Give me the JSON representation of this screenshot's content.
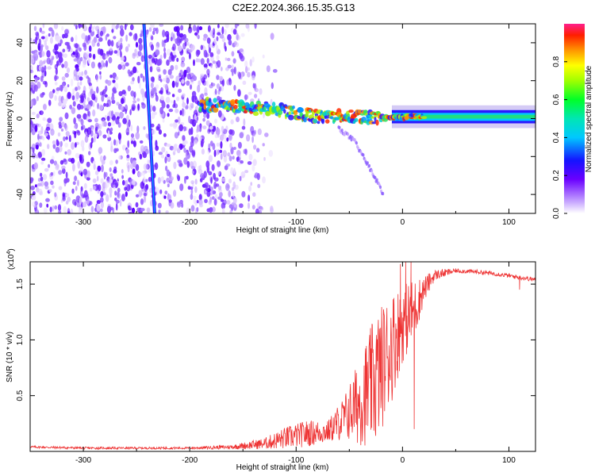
{
  "title": "C2E2.2024.366.15.35.G13",
  "chart_data": [
    {
      "type": "heatmap",
      "name": "spectrogram",
      "xlabel": "Height of straight line (km)",
      "ylabel": "Frequency (Hz)",
      "xlim": [
        -350,
        125
      ],
      "ylim": [
        -50,
        50
      ],
      "xticks": [
        -300,
        -200,
        -100,
        0,
        100
      ],
      "xtick_labels": [
        "-300",
        "-200",
        "-100",
        "0",
        "100"
      ],
      "yticks": [
        -40,
        -20,
        0,
        20,
        40
      ],
      "ytick_labels": [
        "-40",
        "-20",
        "0",
        "20",
        "40"
      ],
      "noise_region_end_km": -140,
      "satellite_streak": {
        "x_top": -243,
        "x_bottom": -233
      },
      "signal_track": [
        {
          "x": -185,
          "y": 7
        },
        {
          "x": -150,
          "y": 6
        },
        {
          "x": -120,
          "y": 5
        },
        {
          "x": -100,
          "y": 3
        },
        {
          "x": -80,
          "y": 1
        },
        {
          "x": -60,
          "y": 1
        },
        {
          "x": -40,
          "y": 1
        },
        {
          "x": -20,
          "y": 0.5
        },
        {
          "x": 0,
          "y": 1
        },
        {
          "x": 40,
          "y": 1
        },
        {
          "x": 80,
          "y": 1
        },
        {
          "x": 125,
          "y": 1
        }
      ],
      "tail_track": [
        {
          "x": -60,
          "y": -5
        },
        {
          "x": -45,
          "y": -12
        },
        {
          "x": -35,
          "y": -22
        },
        {
          "x": -25,
          "y": -32
        },
        {
          "x": -18,
          "y": -40
        }
      ],
      "colorbar": {
        "label": "Normalized spectral amplitude",
        "range": [
          0,
          1
        ],
        "ticks": [
          0.0,
          0.2,
          0.4,
          0.6,
          0.8
        ],
        "tick_labels": [
          "0.0",
          "0.2",
          "0.4",
          "0.6",
          "0.8"
        ]
      }
    },
    {
      "type": "line",
      "name": "snr",
      "xlabel": "Height of straight line (km)",
      "ylabel": "SNR (10 * v/v)",
      "multiplier_label": "(x10",
      "multiplier_exp": "4",
      "multiplier_close": ")",
      "xlim": [
        -350,
        125
      ],
      "ylim": [
        0,
        1.7
      ],
      "xticks": [
        -300,
        -200,
        -100,
        0,
        100
      ],
      "xtick_labels": [
        "-300",
        "-200",
        "-100",
        "0",
        "100"
      ],
      "yticks": [
        0.5,
        1.0,
        1.5
      ],
      "ytick_labels": [
        "0.5",
        "1.0",
        "1.5"
      ],
      "color": "#ee3333",
      "envelope": [
        {
          "x": -350,
          "mean": 0.04,
          "amp": 0.01
        },
        {
          "x": -300,
          "mean": 0.03,
          "amp": 0.01
        },
        {
          "x": -250,
          "mean": 0.03,
          "amp": 0.01
        },
        {
          "x": -200,
          "mean": 0.03,
          "amp": 0.01
        },
        {
          "x": -160,
          "mean": 0.04,
          "amp": 0.02
        },
        {
          "x": -130,
          "mean": 0.07,
          "amp": 0.05
        },
        {
          "x": -110,
          "mean": 0.12,
          "amp": 0.1
        },
        {
          "x": -90,
          "mean": 0.16,
          "amp": 0.12
        },
        {
          "x": -70,
          "mean": 0.18,
          "amp": 0.1
        },
        {
          "x": -55,
          "mean": 0.3,
          "amp": 0.2
        },
        {
          "x": -40,
          "mean": 0.45,
          "amp": 0.4
        },
        {
          "x": -25,
          "mean": 0.65,
          "amp": 0.6
        },
        {
          "x": -10,
          "mean": 0.95,
          "amp": 0.5
        },
        {
          "x": 0,
          "mean": 1.15,
          "amp": 0.35
        },
        {
          "x": 10,
          "mean": 1.25,
          "amp": 0.3
        },
        {
          "x": 20,
          "mean": 1.45,
          "amp": 0.12
        },
        {
          "x": 30,
          "mean": 1.58,
          "amp": 0.05
        },
        {
          "x": 50,
          "mean": 1.62,
          "amp": 0.02
        },
        {
          "x": 70,
          "mean": 1.61,
          "amp": 0.02
        },
        {
          "x": 90,
          "mean": 1.59,
          "amp": 0.02
        },
        {
          "x": 110,
          "mean": 1.56,
          "amp": 0.02
        },
        {
          "x": 125,
          "mean": 1.54,
          "amp": 0.02
        }
      ],
      "spikes": [
        {
          "x": 3,
          "y": 1.7
        },
        {
          "x": 8,
          "y": 1.7
        },
        {
          "x": 11,
          "y": 0.2
        },
        {
          "x": -2,
          "y": 1.68
        },
        {
          "x": 110,
          "y": 1.45
        }
      ]
    }
  ]
}
